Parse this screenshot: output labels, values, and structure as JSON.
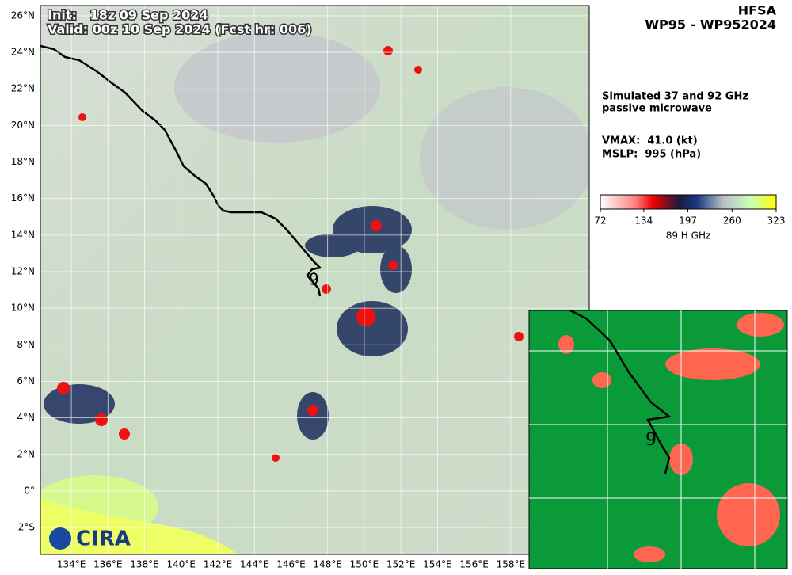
{
  "header": {
    "title": "HFSA",
    "storm": "WP95 - WP952024",
    "init": "Init:   18z 09 Sep 2024",
    "valid": "Valid: 00z 10 Sep 2024 (Fcst hr: 006)"
  },
  "info": {
    "product": [
      "Simulated 37 and 92 GHz",
      "passive microwave"
    ],
    "vmax": "VMAX:  41.0 (kt)",
    "mslp": "MSLP:  995 (hPa)"
  },
  "colorbar": {
    "label": "89 H GHz",
    "range": [
      72,
      323
    ],
    "ticks": [
      72,
      134,
      197,
      260,
      323
    ]
  },
  "map": {
    "latlim": [
      -3.47,
      26.56
    ],
    "lonlim": [
      132.31,
      162.29
    ],
    "latticks": [
      {
        "value": 26,
        "label": "26°N"
      },
      {
        "value": 24,
        "label": "24°N"
      },
      {
        "value": 22,
        "label": "22°N"
      },
      {
        "value": 20,
        "label": "20°N"
      },
      {
        "value": 18,
        "label": "18°N"
      },
      {
        "value": 16,
        "label": "16°N"
      },
      {
        "value": 14,
        "label": "14°N"
      },
      {
        "value": 12,
        "label": "12°N"
      },
      {
        "value": 10,
        "label": "10°N"
      },
      {
        "value": 8,
        "label": "8°N"
      },
      {
        "value": 6,
        "label": "6°N"
      },
      {
        "value": 4,
        "label": "4°N"
      },
      {
        "value": 2,
        "label": "2°N"
      },
      {
        "value": 0,
        "label": "0°"
      },
      {
        "value": -2,
        "label": "2°S"
      }
    ],
    "lonticks": [
      {
        "value": 134,
        "label": "134°E"
      },
      {
        "value": 136,
        "label": "136°E"
      },
      {
        "value": 138,
        "label": "138°E"
      },
      {
        "value": 140,
        "label": "140°E"
      },
      {
        "value": 142,
        "label": "142°E"
      },
      {
        "value": 144,
        "label": "144°E"
      },
      {
        "value": 146,
        "label": "146°E"
      },
      {
        "value": 148,
        "label": "148°E"
      },
      {
        "value": 150,
        "label": "150°E"
      },
      {
        "value": 152,
        "label": "152°E"
      },
      {
        "value": 154,
        "label": "154°E"
      },
      {
        "value": 156,
        "label": "156°E"
      },
      {
        "value": 158,
        "label": "158°E"
      }
    ]
  },
  "logo": "CIRA"
}
